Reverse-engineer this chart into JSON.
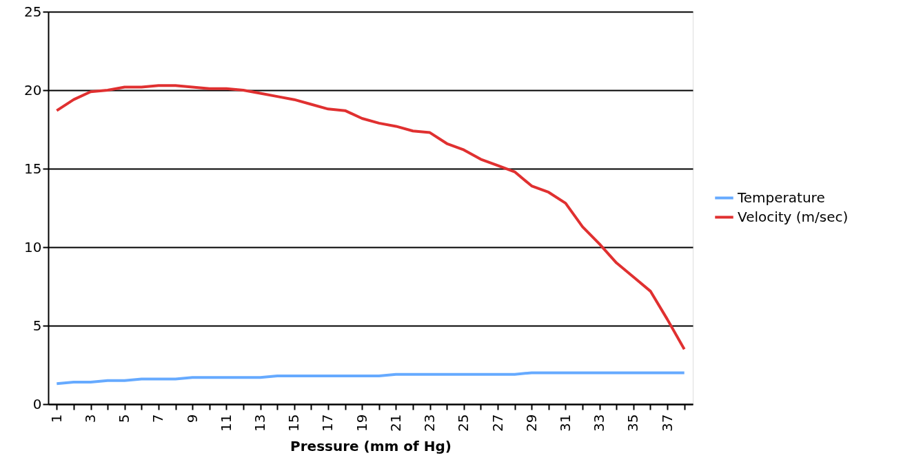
{
  "chart_data": {
    "type": "line",
    "xlabel": "Pressure (mm of Hg)",
    "categories": [
      "1",
      null,
      "3",
      null,
      "5",
      null,
      "7",
      null,
      "9",
      null,
      "11",
      null,
      "13",
      null,
      "15",
      null,
      "17",
      null,
      "19",
      null,
      "21",
      null,
      "23",
      null,
      "25",
      null,
      "27",
      null,
      "29",
      null,
      "31",
      null,
      "33",
      null,
      "35",
      null,
      "37",
      null
    ],
    "series": [
      {
        "name": "Temperature",
        "color": "#66aaff",
        "values": [
          1.3,
          1.4,
          1.4,
          1.5,
          1.5,
          1.6,
          1.6,
          1.6,
          1.7,
          1.7,
          1.7,
          1.7,
          1.7,
          1.8,
          1.8,
          1.8,
          1.8,
          1.8,
          1.8,
          1.8,
          1.9,
          1.9,
          1.9,
          1.9,
          1.9,
          1.9,
          1.9,
          1.9,
          2.0,
          2.0,
          2.0,
          2.0,
          2.0,
          2.0,
          2.0,
          2.0,
          2.0,
          2.0
        ]
      },
      {
        "name": "Velocity (m/sec)",
        "color": "#e03030",
        "values": [
          18.7,
          19.4,
          19.9,
          20.0,
          20.2,
          20.2,
          20.3,
          20.3,
          20.2,
          20.1,
          20.1,
          20.0,
          19.8,
          19.6,
          19.4,
          19.1,
          18.8,
          18.7,
          18.2,
          17.9,
          17.7,
          17.4,
          17.3,
          16.6,
          16.2,
          15.6,
          15.2,
          14.8,
          13.9,
          13.5,
          12.8,
          11.3,
          10.2,
          9.0,
          8.1,
          7.2,
          5.4,
          3.5
        ]
      }
    ],
    "ylim": [
      0,
      25
    ],
    "yticks": [
      0,
      5,
      10,
      15,
      20,
      25
    ],
    "grid": "y",
    "legend": "right",
    "marker": "none",
    "line_style": "solid"
  }
}
